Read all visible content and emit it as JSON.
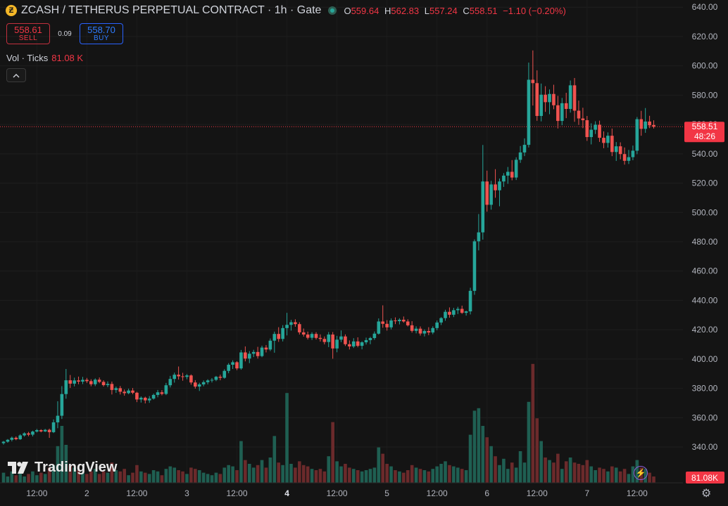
{
  "header": {
    "coin_glyph": "Ƶ",
    "title": "ZCASH / TETHERUS PERPETUAL CONTRACT · 1h · Gate",
    "ohlc": [
      {
        "k": "O",
        "v": "559.64"
      },
      {
        "k": "H",
        "v": "562.83"
      },
      {
        "k": "L",
        "v": "557.24"
      },
      {
        "k": "C",
        "v": "558.51"
      }
    ],
    "change": "−1.10 (−0.20%)"
  },
  "trade": {
    "sell_price": "558.61",
    "sell_label": "SELL",
    "spread": "0.09",
    "buy_price": "558.70",
    "buy_label": "BUY"
  },
  "volume_legend": {
    "label": "Vol · Ticks",
    "value": "81.08 K"
  },
  "price_tag": {
    "price": "558.51",
    "countdown": "48:26"
  },
  "volume_tag": "81.08K",
  "logo_text": "TradingView",
  "icons": {
    "collapse": "chevron-up-icon",
    "logo": "tradingview-logo-icon",
    "bolt": "lightning-icon",
    "settings": "gear-icon"
  },
  "colors": {
    "up": "#26a69a",
    "down": "#ef5350",
    "up_volume": "#1f5f52",
    "down_volume": "#6b2a2b",
    "last_price": "#f23645"
  },
  "chart_data": {
    "type": "candlestick",
    "interval": "1h",
    "x_ticks": [
      {
        "label": "12:00",
        "i": 8
      },
      {
        "label": "2",
        "i": 20
      },
      {
        "label": "12:00",
        "i": 32
      },
      {
        "label": "3",
        "i": 44
      },
      {
        "label": "12:00",
        "i": 56
      },
      {
        "label": "4",
        "i": 68,
        "bold": true
      },
      {
        "label": "12:00",
        "i": 80
      },
      {
        "label": "5",
        "i": 92
      },
      {
        "label": "12:00",
        "i": 104
      },
      {
        "label": "6",
        "i": 116
      },
      {
        "label": "12:00",
        "i": 128
      },
      {
        "label": "7",
        "i": 140
      },
      {
        "label": "12:00",
        "i": 152
      }
    ],
    "y_ticks": [
      340,
      360,
      380,
      400,
      420,
      440,
      460,
      480,
      500,
      520,
      540,
      560,
      580,
      600,
      620,
      640
    ],
    "ylim": [
      320.35,
      642.5
    ],
    "last_price": 558.51,
    "volume_ylim": [
      0,
      100
    ],
    "candles": [
      [
        342.6,
        344.1,
        341.6,
        343.6,
        8
      ],
      [
        343.6,
        345.4,
        342.9,
        344.9,
        5
      ],
      [
        344.9,
        347.1,
        343.8,
        346.3,
        9
      ],
      [
        346.3,
        347.2,
        344.6,
        345.3,
        6
      ],
      [
        345.3,
        348.7,
        344.8,
        347.9,
        8
      ],
      [
        347.9,
        350.0,
        347.1,
        349.3,
        5
      ],
      [
        349.3,
        350.3,
        347.3,
        348.4,
        7
      ],
      [
        348.4,
        351.1,
        347.2,
        350.5,
        9
      ],
      [
        350.5,
        352.3,
        349.9,
        351.5,
        6
      ],
      [
        351.5,
        352.1,
        350.0,
        350.6,
        8
      ],
      [
        350.6,
        352.3,
        350.2,
        351.7,
        7
      ],
      [
        351.7,
        352.5,
        346.2,
        350.1,
        12
      ],
      [
        350.1,
        358.8,
        349.5,
        356.8,
        14
      ],
      [
        356.8,
        371.2,
        352.8,
        361.3,
        29
      ],
      [
        361.3,
        381.5,
        359.1,
        376.1,
        45
      ],
      [
        376.1,
        393.2,
        372.9,
        385.5,
        30
      ],
      [
        385.5,
        389.1,
        380.3,
        383.2,
        14
      ],
      [
        383.2,
        387.3,
        381.3,
        385.4,
        12
      ],
      [
        385.4,
        388.0,
        382.8,
        384.6,
        10
      ],
      [
        384.6,
        387.8,
        382.9,
        385.8,
        8
      ],
      [
        385.8,
        387.1,
        383.7,
        384.9,
        7
      ],
      [
        384.9,
        386.2,
        381.4,
        382.8,
        9
      ],
      [
        382.8,
        386.8,
        381.5,
        385.9,
        11
      ],
      [
        385.9,
        387.4,
        383.5,
        384.4,
        7
      ],
      [
        384.4,
        385.5,
        381.2,
        382.2,
        9
      ],
      [
        382.2,
        384.7,
        380.8,
        383.0,
        8
      ],
      [
        383.0,
        384.6,
        375.8,
        378.9,
        16
      ],
      [
        378.9,
        381.2,
        376.9,
        380.1,
        10
      ],
      [
        380.1,
        381.6,
        375.8,
        377.7,
        9
      ],
      [
        377.7,
        379.2,
        375.0,
        376.7,
        11
      ],
      [
        376.7,
        379.8,
        376.0,
        378.5,
        6
      ],
      [
        378.5,
        380.2,
        376.0,
        377.0,
        8
      ],
      [
        377.0,
        377.6,
        370.6,
        372.4,
        14
      ],
      [
        372.4,
        374.5,
        370.3,
        373.6,
        9
      ],
      [
        373.6,
        374.3,
        369.7,
        371.8,
        8
      ],
      [
        371.8,
        374.7,
        370.1,
        373.0,
        7
      ],
      [
        373.0,
        376.4,
        372.3,
        375.5,
        10
      ],
      [
        375.5,
        378.9,
        373.9,
        377.3,
        9
      ],
      [
        377.3,
        378.8,
        375.2,
        376.2,
        6
      ],
      [
        376.2,
        383.7,
        375.4,
        382.1,
        11
      ],
      [
        382.1,
        388.5,
        380.6,
        386.4,
        13
      ],
      [
        386.4,
        390.7,
        383.9,
        389.3,
        12
      ],
      [
        389.3,
        394.9,
        386.0,
        388.2,
        10
      ],
      [
        388.2,
        390.6,
        385.2,
        387.8,
        9
      ],
      [
        387.8,
        389.7,
        386.2,
        388.8,
        7
      ],
      [
        388.8,
        389.5,
        382.5,
        384.0,
        12
      ],
      [
        384.0,
        385.6,
        379.8,
        381.2,
        11
      ],
      [
        381.2,
        383.8,
        378.2,
        382.7,
        10
      ],
      [
        382.7,
        385.4,
        381.4,
        384.2,
        8
      ],
      [
        384.2,
        386.2,
        382.7,
        385.4,
        7
      ],
      [
        385.4,
        387.0,
        384.0,
        385.8,
        6
      ],
      [
        385.8,
        388.5,
        384.9,
        387.9,
        8
      ],
      [
        387.9,
        389.3,
        385.5,
        387.2,
        7
      ],
      [
        387.2,
        393.0,
        386.6,
        391.9,
        12
      ],
      [
        391.9,
        397.2,
        390.3,
        396.1,
        14
      ],
      [
        396.1,
        399.1,
        393.2,
        397.8,
        13
      ],
      [
        397.8,
        398.5,
        392.4,
        393.6,
        10
      ],
      [
        393.6,
        406.2,
        392.7,
        404.5,
        33
      ],
      [
        404.5,
        408.6,
        398.4,
        400.3,
        18
      ],
      [
        400.3,
        405.4,
        397.2,
        403.6,
        15
      ],
      [
        403.6,
        406.3,
        401.3,
        404.8,
        12
      ],
      [
        404.8,
        408.3,
        400.3,
        402.0,
        14
      ],
      [
        402.0,
        409.1,
        401.2,
        407.8,
        18
      ],
      [
        407.8,
        409.5,
        404.5,
        406.5,
        12
      ],
      [
        406.5,
        414.0,
        405.4,
        412.5,
        20
      ],
      [
        412.5,
        418.7,
        404.3,
        417.1,
        37
      ],
      [
        417.1,
        421.7,
        411.7,
        413.7,
        16
      ],
      [
        413.7,
        423.1,
        412.0,
        421.1,
        14
      ],
      [
        421.1,
        431.5,
        416.1,
        423.3,
        71
      ],
      [
        423.3,
        426.7,
        419.4,
        425.1,
        15
      ],
      [
        425.1,
        427.1,
        422.0,
        423.8,
        12
      ],
      [
        423.8,
        425.1,
        416.7,
        418.2,
        17
      ],
      [
        418.2,
        420.8,
        415.3,
        416.7,
        14
      ],
      [
        416.7,
        418.7,
        413.3,
        414.5,
        13
      ],
      [
        414.5,
        418.3,
        413.0,
        417.1,
        11
      ],
      [
        417.1,
        418.3,
        413.3,
        414.4,
        10
      ],
      [
        414.4,
        416.8,
        411.9,
        413.7,
        11
      ],
      [
        413.7,
        415.4,
        410.0,
        411.6,
        9
      ],
      [
        411.6,
        418.4,
        408.1,
        416.7,
        21
      ],
      [
        416.7,
        418.4,
        400.2,
        407.2,
        48
      ],
      [
        407.2,
        415.8,
        404.6,
        413.2,
        17
      ],
      [
        413.2,
        419.5,
        411.5,
        415.4,
        13
      ],
      [
        415.4,
        416.8,
        408.9,
        410.1,
        15
      ],
      [
        410.1,
        412.7,
        406.5,
        408.6,
        12
      ],
      [
        408.6,
        414.2,
        407.5,
        412.0,
        11
      ],
      [
        412.0,
        414.8,
        408.0,
        409.0,
        10
      ],
      [
        409.0,
        412.1,
        406.6,
        411.4,
        9
      ],
      [
        411.4,
        414.6,
        409.9,
        412.9,
        10
      ],
      [
        412.9,
        415.1,
        410.1,
        414.3,
        11
      ],
      [
        414.3,
        418.8,
        413.1,
        417.3,
        12
      ],
      [
        417.3,
        427.7,
        416.7,
        425.6,
        28
      ],
      [
        425.6,
        436.6,
        421.3,
        424.0,
        23
      ],
      [
        424.0,
        426.5,
        419.4,
        421.6,
        15
      ],
      [
        421.6,
        427.7,
        420.2,
        426.3,
        13
      ],
      [
        426.3,
        428.4,
        423.8,
        425.8,
        10
      ],
      [
        425.8,
        427.8,
        423.6,
        426.8,
        9
      ],
      [
        426.8,
        429.0,
        424.8,
        425.6,
        8
      ],
      [
        425.6,
        427.1,
        422.2,
        423.0,
        10
      ],
      [
        423.0,
        425.8,
        418.0,
        419.2,
        14
      ],
      [
        419.2,
        422.3,
        417.5,
        420.7,
        12
      ],
      [
        420.7,
        422.2,
        416.0,
        417.4,
        11
      ],
      [
        417.4,
        420.2,
        415.4,
        419.1,
        10
      ],
      [
        419.1,
        421.7,
        416.3,
        418.1,
        9
      ],
      [
        418.1,
        422.3,
        416.9,
        421.1,
        11
      ],
      [
        421.1,
        426.3,
        419.6,
        424.9,
        13
      ],
      [
        424.9,
        428.6,
        423.2,
        427.9,
        15
      ],
      [
        427.9,
        433.6,
        426.1,
        432.2,
        17
      ],
      [
        432.2,
        435.2,
        428.2,
        430.2,
        14
      ],
      [
        430.2,
        434.9,
        428.6,
        433.3,
        13
      ],
      [
        433.3,
        435.6,
        430.7,
        434.2,
        12
      ],
      [
        434.2,
        436.4,
        430.8,
        431.5,
        11
      ],
      [
        431.5,
        433.0,
        429.6,
        432.5,
        10
      ],
      [
        432.5,
        448.6,
        430.4,
        446.5,
        38
      ],
      [
        446.5,
        481.6,
        443.8,
        480.3,
        57
      ],
      [
        480.3,
        498.9,
        474.1,
        486.4,
        59
      ],
      [
        486.4,
        546.0,
        481.4,
        521.1,
        45
      ],
      [
        521.1,
        528.5,
        500.5,
        505.2,
        36
      ],
      [
        505.2,
        521.6,
        501.9,
        519.1,
        29
      ],
      [
        519.1,
        529.5,
        510.0,
        515.1,
        21
      ],
      [
        515.1,
        523.1,
        504.2,
        521.1,
        14
      ],
      [
        521.1,
        526.8,
        517.4,
        525.1,
        19
      ],
      [
        525.1,
        531.0,
        519.5,
        527.7,
        11
      ],
      [
        527.7,
        535.7,
        521.9,
        523.8,
        16
      ],
      [
        523.8,
        537.6,
        522.1,
        535.9,
        12
      ],
      [
        535.9,
        545.3,
        533.8,
        540.9,
        25
      ],
      [
        540.9,
        550.5,
        538.4,
        546.1,
        16
      ],
      [
        546.1,
        602.2,
        544.3,
        590.5,
        64
      ],
      [
        590.5,
        610.5,
        572.9,
        588.2,
        94
      ],
      [
        588.2,
        596.9,
        562.5,
        565.8,
        51
      ],
      [
        565.8,
        587.9,
        562.1,
        580.3,
        33
      ],
      [
        580.3,
        586.1,
        568.6,
        575.2,
        20
      ],
      [
        575.2,
        583.9,
        567.0,
        580.8,
        18
      ],
      [
        580.8,
        587.1,
        570.4,
        573.1,
        16
      ],
      [
        573.1,
        579.5,
        557.3,
        562.4,
        23
      ],
      [
        562.4,
        578.1,
        559.5,
        574.5,
        11
      ],
      [
        574.5,
        581.6,
        564.3,
        570.6,
        17
      ],
      [
        570.6,
        590.0,
        568.1,
        586.7,
        20
      ],
      [
        586.7,
        591.7,
        561.8,
        569.4,
        16
      ],
      [
        569.4,
        576.3,
        559.7,
        564.1,
        15
      ],
      [
        564.1,
        571.4,
        557.5,
        562.9,
        14
      ],
      [
        562.9,
        565.8,
        548.8,
        551.4,
        18
      ],
      [
        551.4,
        560.8,
        546.4,
        556.4,
        13
      ],
      [
        556.4,
        562.2,
        553.5,
        559.8,
        10
      ],
      [
        559.8,
        562.6,
        548.1,
        550.9,
        12
      ],
      [
        550.9,
        555.3,
        543.8,
        547.4,
        11
      ],
      [
        547.4,
        554.6,
        544.2,
        552.3,
        9
      ],
      [
        552.3,
        557.2,
        538.4,
        541.2,
        13
      ],
      [
        541.2,
        548.0,
        535.1,
        545.1,
        12
      ],
      [
        545.1,
        547.8,
        536.2,
        539.8,
        9
      ],
      [
        539.8,
        544.3,
        532.6,
        535.2,
        11
      ],
      [
        535.2,
        542.6,
        533.0,
        537.7,
        7
      ],
      [
        537.7,
        545.6,
        535.6,
        542.1,
        13
      ],
      [
        542.1,
        565.1,
        539.7,
        563.6,
        18
      ],
      [
        563.6,
        569.3,
        552.3,
        557.0,
        12
      ],
      [
        557.0,
        571.2,
        554.3,
        562.0,
        11
      ],
      [
        562.0,
        565.9,
        557.5,
        559.4,
        8
      ],
      [
        559.64,
        562.83,
        557.24,
        558.51,
        5
      ]
    ]
  }
}
